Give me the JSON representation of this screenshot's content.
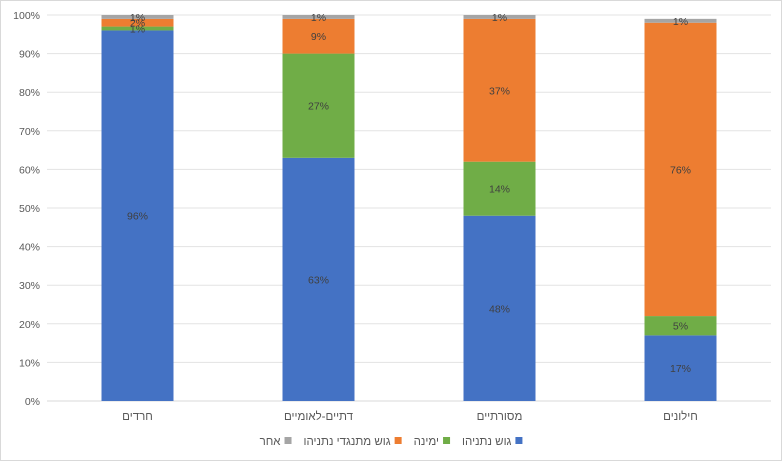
{
  "chart_data": {
    "type": "bar",
    "stacked": true,
    "percent": true,
    "categories": [
      "חרדים",
      "דתיים-לאומיים",
      "מסורתיים",
      "חילונים"
    ],
    "series": [
      {
        "name": "גוש נתניהו",
        "color": "#4472C4",
        "values": [
          96,
          63,
          48,
          17
        ],
        "labels": [
          "96%",
          "63%",
          "48%",
          "17%"
        ]
      },
      {
        "name": "ימינה",
        "color": "#70AD47",
        "values": [
          1,
          27,
          14,
          5
        ],
        "labels": [
          "1%",
          "27%",
          "14%",
          "5%"
        ]
      },
      {
        "name": "גוש מתנגדי נתניהו",
        "color": "#ED7D31",
        "values": [
          2,
          9,
          37,
          76
        ],
        "labels": [
          "2%",
          "9%",
          "37%",
          "76%"
        ]
      },
      {
        "name": "אחר",
        "color": "#A5A5A5",
        "values": [
          1,
          1,
          1,
          1
        ],
        "labels": [
          "1%",
          "1%",
          "1%",
          "1%"
        ]
      }
    ],
    "ylim": [
      0,
      100
    ],
    "yticks": [
      "0%",
      "10%",
      "20%",
      "30%",
      "40%",
      "50%",
      "60%",
      "70%",
      "80%",
      "90%",
      "100%"
    ],
    "grid": true,
    "legend": "bottom",
    "title": "",
    "xlabel": "",
    "ylabel": ""
  }
}
